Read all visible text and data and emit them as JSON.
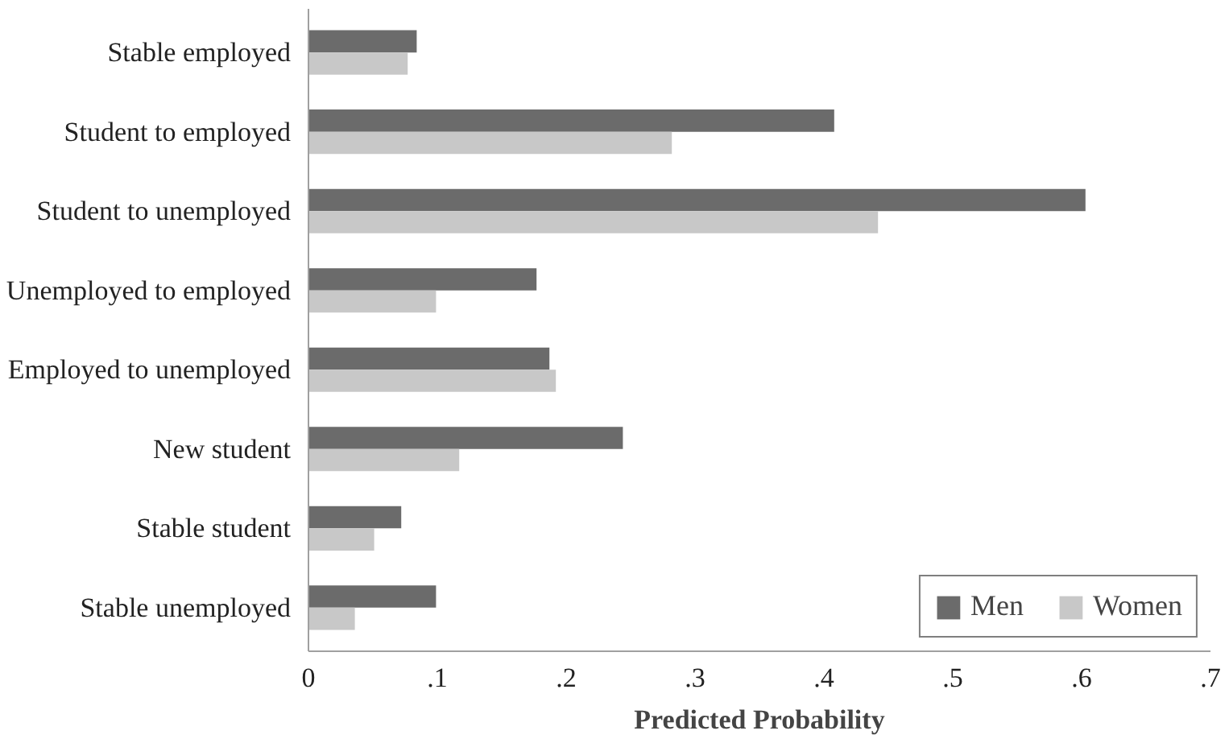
{
  "chart_data": {
    "type": "bar",
    "orientation": "horizontal",
    "xlabel": "Predicted Probability",
    "categories": [
      "Stable employed",
      "Student to employed",
      "Student to unemployed",
      "Unemployed to employed",
      "Employed to unemployed",
      "New student",
      "Stable student",
      "Stable unemployed"
    ],
    "series": [
      {
        "name": "Men",
        "color": "#6b6b6b",
        "values": [
          0.084,
          0.408,
          0.603,
          0.177,
          0.187,
          0.244,
          0.072,
          0.099
        ]
      },
      {
        "name": "Women",
        "color": "#c8c8c8",
        "values": [
          0.077,
          0.282,
          0.442,
          0.099,
          0.192,
          0.117,
          0.051,
          0.036
        ]
      }
    ],
    "xlim": [
      0,
      0.7
    ],
    "xticks": [
      0,
      {
        "value": 0.1,
        "label": ".1"
      },
      {
        "value": 0.2,
        "label": ".2"
      },
      {
        "value": 0.3,
        "label": ".3"
      },
      {
        "value": 0.4,
        "label": ".4"
      },
      {
        "value": 0.5,
        "label": ".5"
      },
      {
        "value": 0.6,
        "label": ".6"
      },
      {
        "value": 0.7,
        "label": ".7"
      }
    ],
    "grid": false,
    "legend": "bottom right"
  }
}
